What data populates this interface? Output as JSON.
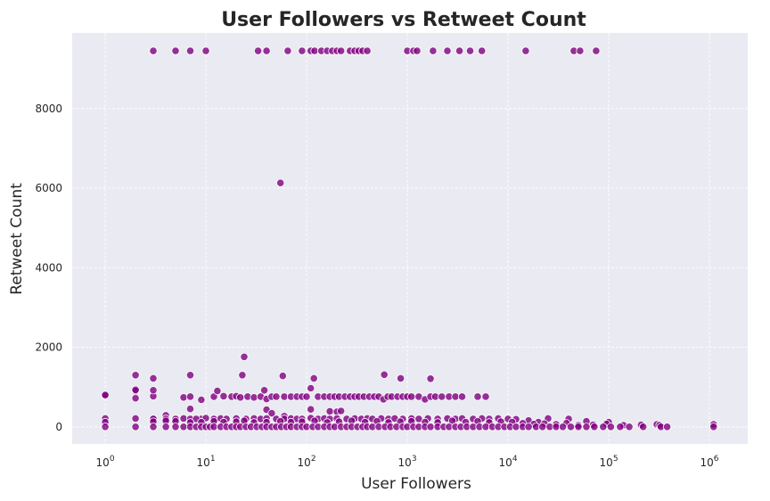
{
  "chart_data": {
    "type": "scatter",
    "title": "User Followers vs Retweet Count",
    "xlabel": "User Followers",
    "ylabel": "Retweet Count",
    "x_scale": "log",
    "xlim": [
      0.47,
      2400000
    ],
    "ylim": [
      -430,
      9900
    ],
    "x_ticks": [
      1,
      10,
      100,
      1000,
      10000,
      100000,
      1000000
    ],
    "x_tick_labels": [
      {
        "base": "10",
        "exp": "0"
      },
      {
        "base": "10",
        "exp": "1"
      },
      {
        "base": "10",
        "exp": "2"
      },
      {
        "base": "10",
        "exp": "3"
      },
      {
        "base": "10",
        "exp": "4"
      },
      {
        "base": "10",
        "exp": "5"
      },
      {
        "base": "10",
        "exp": "6"
      }
    ],
    "y_ticks": [
      0,
      2000,
      4000,
      6000,
      8000
    ],
    "y_tick_labels": [
      "0",
      "2000",
      "4000",
      "6000",
      "8000"
    ],
    "grid": true,
    "marker_color": "#800080",
    "background_color": "#eaeaf2",
    "series": [
      {
        "points": [
          [
            3,
            9450
          ],
          [
            5,
            9450
          ],
          [
            7,
            9450
          ],
          [
            10,
            9450
          ],
          [
            33,
            9450
          ],
          [
            40,
            9450
          ],
          [
            65,
            9450
          ],
          [
            90,
            9450
          ],
          [
            110,
            9450
          ],
          [
            120,
            9450
          ],
          [
            140,
            9450
          ],
          [
            160,
            9450
          ],
          [
            180,
            9450
          ],
          [
            200,
            9450
          ],
          [
            220,
            9450
          ],
          [
            270,
            9450
          ],
          [
            300,
            9450
          ],
          [
            330,
            9450
          ],
          [
            360,
            9450
          ],
          [
            400,
            9450
          ],
          [
            1000,
            9450
          ],
          [
            1150,
            9450
          ],
          [
            1250,
            9450
          ],
          [
            1800,
            9450
          ],
          [
            2500,
            9450
          ],
          [
            3300,
            9450
          ],
          [
            4200,
            9450
          ],
          [
            5500,
            9450
          ],
          [
            15000,
            9450
          ],
          [
            45000,
            9450
          ],
          [
            52000,
            9450
          ],
          [
            75000,
            9450
          ],
          [
            55,
            6130
          ],
          [
            24,
            1760
          ],
          [
            2,
            1300
          ],
          [
            7,
            1300
          ],
          [
            23,
            1300
          ],
          [
            58,
            1280
          ],
          [
            118,
            1220
          ],
          [
            3,
            1220
          ],
          [
            860,
            1220
          ],
          [
            1700,
            1210
          ],
          [
            590,
            1310
          ],
          [
            1,
            780
          ],
          [
            1,
            800
          ],
          [
            2,
            720
          ],
          [
            2,
            900
          ],
          [
            2,
            930
          ],
          [
            3,
            770
          ],
          [
            3,
            920
          ],
          [
            6,
            740
          ],
          [
            7,
            760
          ],
          [
            9,
            680
          ],
          [
            12,
            760
          ],
          [
            13,
            900
          ],
          [
            15,
            770
          ],
          [
            18,
            760
          ],
          [
            20,
            770
          ],
          [
            22,
            740
          ],
          [
            26,
            760
          ],
          [
            30,
            740
          ],
          [
            35,
            760
          ],
          [
            38,
            920
          ],
          [
            40,
            700
          ],
          [
            45,
            760
          ],
          [
            50,
            760
          ],
          [
            60,
            760
          ],
          [
            70,
            760
          ],
          [
            80,
            760
          ],
          [
            90,
            760
          ],
          [
            100,
            760
          ],
          [
            110,
            970
          ],
          [
            130,
            760
          ],
          [
            150,
            760
          ],
          [
            170,
            760
          ],
          [
            190,
            760
          ],
          [
            210,
            760
          ],
          [
            240,
            760
          ],
          [
            270,
            760
          ],
          [
            300,
            760
          ],
          [
            330,
            760
          ],
          [
            370,
            760
          ],
          [
            420,
            760
          ],
          [
            470,
            760
          ],
          [
            520,
            760
          ],
          [
            580,
            690
          ],
          [
            640,
            760
          ],
          [
            700,
            760
          ],
          [
            800,
            760
          ],
          [
            900,
            760
          ],
          [
            1000,
            760
          ],
          [
            1100,
            760
          ],
          [
            1300,
            760
          ],
          [
            1500,
            690
          ],
          [
            1700,
            760
          ],
          [
            1900,
            760
          ],
          [
            2200,
            760
          ],
          [
            2600,
            760
          ],
          [
            3000,
            760
          ],
          [
            3500,
            760
          ],
          [
            5000,
            760
          ],
          [
            6000,
            760
          ],
          [
            7,
            450
          ],
          [
            40,
            430
          ],
          [
            45,
            340
          ],
          [
            60,
            270
          ],
          [
            110,
            440
          ],
          [
            170,
            390
          ],
          [
            200,
            380
          ],
          [
            220,
            400
          ],
          [
            3,
            200
          ],
          [
            4,
            290
          ],
          [
            9,
            200
          ],
          [
            1,
            210
          ],
          [
            2,
            210
          ],
          [
            3,
            200
          ],
          [
            4,
            200
          ],
          [
            5,
            200
          ],
          [
            6,
            210
          ],
          [
            7,
            200
          ],
          [
            8,
            200
          ],
          [
            10,
            220
          ],
          [
            12,
            200
          ],
          [
            14,
            210
          ],
          [
            16,
            200
          ],
          [
            20,
            210
          ],
          [
            25,
            200
          ],
          [
            30,
            210
          ],
          [
            35,
            200
          ],
          [
            40,
            210
          ],
          [
            50,
            200
          ],
          [
            60,
            200
          ],
          [
            70,
            210
          ],
          [
            80,
            200
          ],
          [
            90,
            200
          ],
          [
            110,
            220
          ],
          [
            130,
            200
          ],
          [
            150,
            210
          ],
          [
            170,
            200
          ],
          [
            200,
            210
          ],
          [
            250,
            200
          ],
          [
            300,
            210
          ],
          [
            350,
            200
          ],
          [
            400,
            210
          ],
          [
            450,
            200
          ],
          [
            550,
            210
          ],
          [
            650,
            200
          ],
          [
            750,
            210
          ],
          [
            900,
            200
          ],
          [
            1100,
            210
          ],
          [
            1300,
            200
          ],
          [
            1600,
            210
          ],
          [
            2000,
            200
          ],
          [
            2500,
            210
          ],
          [
            3000,
            200
          ],
          [
            3500,
            210
          ],
          [
            4500,
            200
          ],
          [
            5500,
            210
          ],
          [
            6500,
            200
          ],
          [
            8000,
            210
          ],
          [
            10000,
            200
          ],
          [
            12000,
            190
          ],
          [
            16000,
            160
          ],
          [
            20000,
            120
          ],
          [
            25000,
            210
          ],
          [
            40000,
            200
          ],
          [
            60000,
            140
          ],
          [
            100000,
            120
          ],
          [
            300000,
            60
          ],
          [
            1100000,
            60
          ],
          [
            1,
            120
          ],
          [
            3,
            130
          ],
          [
            4,
            150
          ],
          [
            5,
            140
          ],
          [
            7,
            110
          ],
          [
            9,
            120
          ],
          [
            12,
            140
          ],
          [
            15,
            120
          ],
          [
            20,
            130
          ],
          [
            24,
            150
          ],
          [
            30,
            110
          ],
          [
            40,
            120
          ],
          [
            55,
            140
          ],
          [
            70,
            120
          ],
          [
            90,
            130
          ],
          [
            120,
            150
          ],
          [
            160,
            110
          ],
          [
            210,
            130
          ],
          [
            280,
            150
          ],
          [
            380,
            120
          ],
          [
            500,
            140
          ],
          [
            650,
            110
          ],
          [
            850,
            130
          ],
          [
            1100,
            140
          ],
          [
            1500,
            120
          ],
          [
            2000,
            110
          ],
          [
            2800,
            150
          ],
          [
            3800,
            120
          ],
          [
            5000,
            140
          ],
          [
            6500,
            110
          ],
          [
            8500,
            130
          ],
          [
            11000,
            120
          ],
          [
            14000,
            90
          ],
          [
            18000,
            70
          ],
          [
            23000,
            80
          ],
          [
            30000,
            60
          ],
          [
            38000,
            90
          ],
          [
            50000,
            40
          ],
          [
            70000,
            50
          ],
          [
            95000,
            70
          ],
          [
            140000,
            40
          ],
          [
            210000,
            50
          ],
          [
            320000,
            40
          ],
          [
            1,
            0
          ],
          [
            2,
            0
          ],
          [
            3,
            0
          ],
          [
            4,
            0
          ],
          [
            5,
            0
          ],
          [
            6,
            0
          ],
          [
            7,
            0
          ],
          [
            8,
            0
          ],
          [
            9,
            0
          ],
          [
            10,
            0
          ],
          [
            11,
            0
          ],
          [
            12,
            0
          ],
          [
            14,
            0
          ],
          [
            16,
            0
          ],
          [
            18,
            0
          ],
          [
            20,
            0
          ],
          [
            22,
            0
          ],
          [
            25,
            0
          ],
          [
            28,
            0
          ],
          [
            32,
            0
          ],
          [
            36,
            0
          ],
          [
            40,
            0
          ],
          [
            45,
            0
          ],
          [
            50,
            0
          ],
          [
            56,
            0
          ],
          [
            63,
            0
          ],
          [
            70,
            0
          ],
          [
            80,
            0
          ],
          [
            90,
            0
          ],
          [
            100,
            0
          ],
          [
            115,
            0
          ],
          [
            130,
            0
          ],
          [
            150,
            0
          ],
          [
            170,
            0
          ],
          [
            190,
            0
          ],
          [
            220,
            0
          ],
          [
            250,
            0
          ],
          [
            280,
            0
          ],
          [
            320,
            0
          ],
          [
            360,
            0
          ],
          [
            400,
            0
          ],
          [
            450,
            0
          ],
          [
            520,
            0
          ],
          [
            600,
            0
          ],
          [
            680,
            0
          ],
          [
            780,
            0
          ],
          [
            900,
            0
          ],
          [
            1000,
            0
          ],
          [
            1150,
            0
          ],
          [
            1300,
            0
          ],
          [
            1500,
            0
          ],
          [
            1700,
            0
          ],
          [
            2000,
            0
          ],
          [
            2300,
            0
          ],
          [
            2600,
            0
          ],
          [
            3000,
            0
          ],
          [
            3400,
            0
          ],
          [
            3900,
            0
          ],
          [
            4500,
            0
          ],
          [
            5200,
            0
          ],
          [
            6000,
            0
          ],
          [
            7000,
            0
          ],
          [
            8000,
            0
          ],
          [
            9200,
            0
          ],
          [
            10500,
            0
          ],
          [
            12000,
            0
          ],
          [
            14000,
            0
          ],
          [
            16000,
            0
          ],
          [
            19000,
            0
          ],
          [
            22000,
            0
          ],
          [
            26000,
            0
          ],
          [
            30000,
            0
          ],
          [
            35000,
            0
          ],
          [
            42000,
            0
          ],
          [
            50000,
            0
          ],
          [
            60000,
            0
          ],
          [
            72000,
            0
          ],
          [
            88000,
            0
          ],
          [
            105000,
            0
          ],
          [
            130000,
            0
          ],
          [
            160000,
            0
          ],
          [
            220000,
            0
          ],
          [
            330000,
            0
          ],
          [
            380000,
            0
          ],
          [
            1100000,
            0
          ]
        ]
      }
    ]
  }
}
